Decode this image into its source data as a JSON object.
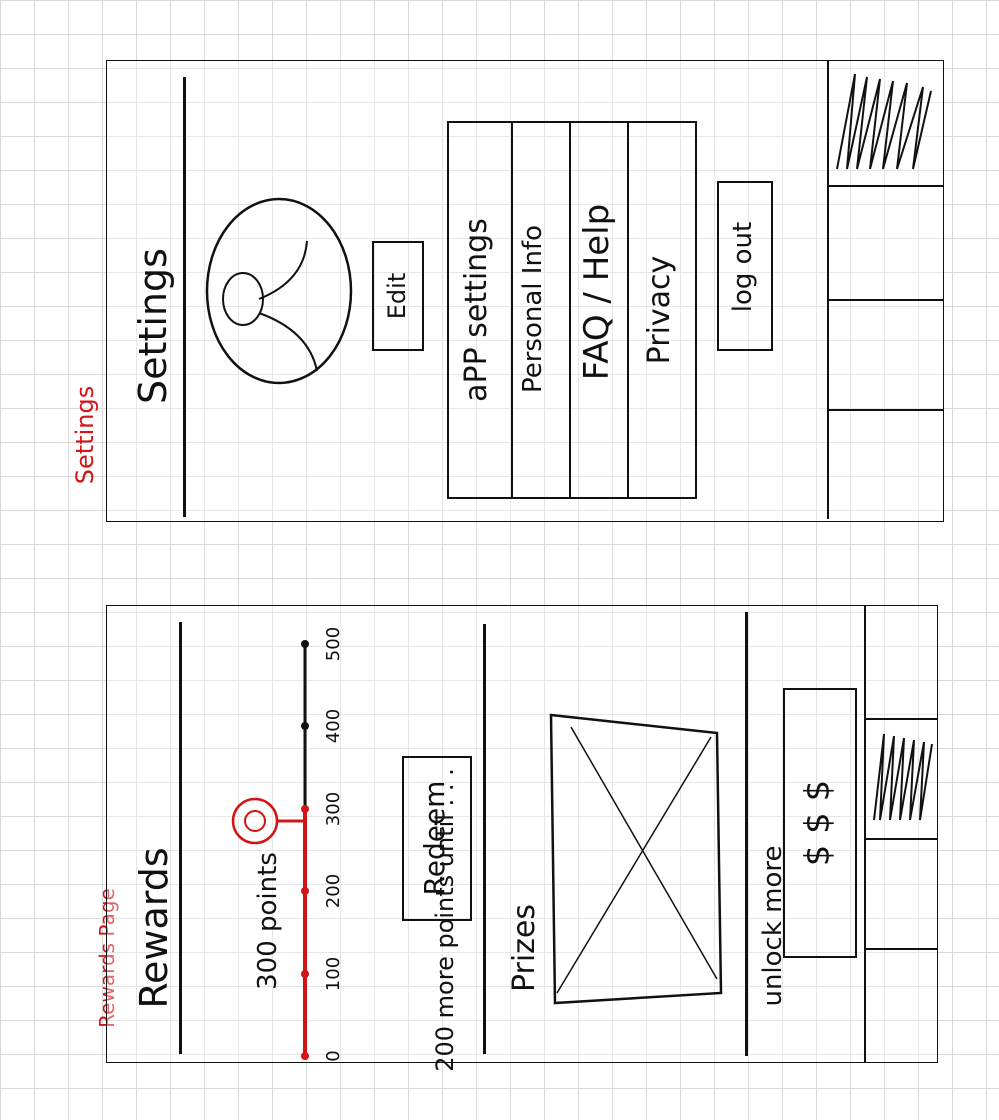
{
  "settings_screen": {
    "page_label": "Settings",
    "title": "Settings",
    "edit_button": "Edit",
    "menu_items": [
      "aPP settings",
      "Personal Info",
      "FAQ / Help",
      "Privacy"
    ],
    "logout_button": "log out"
  },
  "rewards_screen": {
    "page_label": "Rewards Page",
    "title": "Rewards",
    "points_text": "300 points",
    "progress": {
      "ticks": [
        "0",
        "100",
        "200",
        "300",
        "400",
        "500"
      ],
      "current_points": 300,
      "max_points": 500
    },
    "points_until_text": "200 more points until . . .",
    "redeem_button": "Redeem",
    "prizes_label": "Prizes",
    "unlock_label": "unlock more",
    "unlock_button": "$ $ $"
  },
  "colors": {
    "ink": "#111111",
    "annotation_red": "#d41414",
    "grid": "#d9d9d9"
  }
}
